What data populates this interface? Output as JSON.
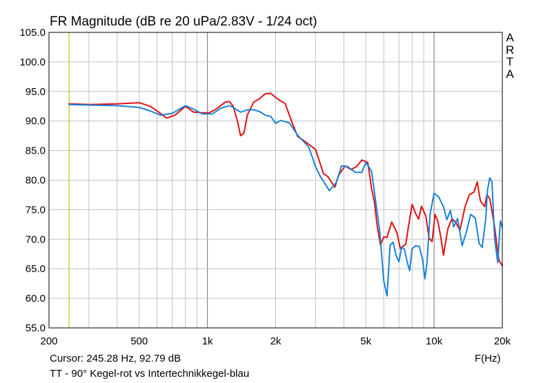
{
  "chart_data": {
    "type": "line",
    "title": "FR Magnitude (dB re 20 uPa/2.83V - 1/24 oct)",
    "xlabel": "F(Hz)",
    "ylabel": "",
    "x_scale": "log",
    "xlim": [
      200,
      20000
    ],
    "ylim": [
      55,
      105
    ],
    "x_ticks": [
      {
        "value": 200,
        "label": "200"
      },
      {
        "value": 500,
        "label": "500"
      },
      {
        "value": 1000,
        "label": "1k"
      },
      {
        "value": 2000,
        "label": "2k"
      },
      {
        "value": 5000,
        "label": "5k"
      },
      {
        "value": 10000,
        "label": "10k"
      },
      {
        "value": 20000,
        "label": "20k"
      }
    ],
    "y_ticks": [
      "55.0",
      "60.0",
      "65.0",
      "70.0",
      "75.0",
      "80.0",
      "85.0",
      "90.0",
      "95.0",
      "100.0",
      "105.0"
    ],
    "grid": true,
    "cursor_frequency": 245.28,
    "cursor_text": "Cursor: 245.28 Hz, 92.79 dB",
    "brand_text": "ARTA",
    "caption": "TT - 90° Kegel-rot vs Intertechnikkegel-blau",
    "series": [
      {
        "color": "#e01010",
        "x": [
          245,
          300,
          400,
          500,
          560,
          620,
          660,
          720,
          800,
          870,
          950,
          1020,
          1100,
          1200,
          1250,
          1300,
          1360,
          1400,
          1450,
          1500,
          1600,
          1700,
          1800,
          1900,
          2000,
          2100,
          2200,
          2350,
          2500,
          2700,
          3000,
          3250,
          3400,
          3650,
          3800,
          4050,
          4300,
          4550,
          4800,
          5100,
          5300,
          5450,
          5600,
          5800,
          6000,
          6200,
          6500,
          6850,
          7100,
          7300,
          7500,
          7700,
          8000,
          8300,
          8550,
          8800,
          9200,
          9500,
          9800,
          10100,
          10400,
          10700,
          11000,
          11500,
          12000,
          12500,
          13000,
          13700,
          14300,
          15000,
          15500,
          16000,
          16700,
          17100,
          17600,
          18500,
          19300,
          20000
        ],
        "y": [
          92.9,
          92.8,
          92.9,
          93.1,
          92.5,
          91.3,
          90.5,
          91.0,
          92.5,
          91.5,
          91.4,
          91.4,
          92.1,
          93.2,
          93.3,
          92.5,
          89.8,
          87.5,
          88.0,
          91.0,
          93.2,
          93.8,
          94.6,
          94.7,
          94.0,
          93.4,
          93.0,
          90.0,
          87.4,
          86.5,
          85.2,
          81.1,
          80.6,
          78.8,
          80.9,
          82.4,
          81.8,
          82.3,
          83.4,
          83.0,
          78.6,
          76.4,
          72.5,
          69.0,
          70.4,
          70.3,
          72.9,
          71.2,
          68.4,
          68.8,
          69.2,
          72.0,
          75.9,
          74.3,
          73.4,
          75.6,
          73.9,
          70.2,
          69.6,
          74.2,
          73.0,
          70.4,
          67.3,
          71.8,
          73.5,
          72.8,
          71.5,
          75.5,
          77.5,
          78.0,
          79.7,
          76.5,
          75.5,
          77.5,
          76.9,
          72.0,
          66.5,
          65.5
        ]
      },
      {
        "color": "#1a80d8",
        "x": [
          245,
          300,
          400,
          500,
          560,
          620,
          700,
          800,
          870,
          950,
          1050,
          1150,
          1250,
          1300,
          1400,
          1500,
          1600,
          1700,
          1800,
          1900,
          2000,
          2100,
          2300,
          2500,
          2800,
          3000,
          3150,
          3300,
          3450,
          3700,
          3900,
          4150,
          4500,
          4800,
          5000,
          5300,
          5500,
          5750,
          6000,
          6200,
          6400,
          6600,
          6800,
          7000,
          7200,
          7400,
          7600,
          7800,
          8000,
          8300,
          8600,
          8900,
          9100,
          9300,
          9600,
          10000,
          10500,
          11000,
          11400,
          11800,
          12200,
          12700,
          13300,
          13900,
          14500,
          15200,
          15800,
          16300,
          16900,
          17200,
          17600,
          18000,
          18500,
          19100,
          19600,
          20000
        ],
        "y": [
          92.8,
          92.7,
          92.6,
          92.3,
          91.7,
          91.0,
          91.3,
          92.6,
          92.0,
          91.2,
          91.2,
          92.2,
          92.6,
          92.3,
          91.5,
          91.9,
          91.9,
          91.6,
          91.0,
          90.8,
          89.6,
          90.1,
          89.7,
          87.6,
          85.6,
          82.3,
          80.6,
          79.4,
          78.2,
          79.6,
          82.4,
          82.3,
          81.3,
          81.3,
          83.0,
          81.5,
          77.0,
          71.5,
          63.0,
          60.4,
          69.0,
          69.5,
          67.2,
          66.2,
          68.7,
          68.3,
          66.2,
          64.7,
          68.4,
          68.9,
          68.8,
          66.5,
          63.3,
          66.0,
          74.2,
          77.8,
          77.1,
          75.5,
          73.3,
          74.9,
          72.1,
          73.5,
          68.9,
          71.3,
          74.2,
          73.6,
          69.3,
          68.6,
          73.5,
          78.3,
          80.4,
          79.7,
          70.0,
          66.0,
          73.1,
          72.0
        ]
      }
    ]
  }
}
